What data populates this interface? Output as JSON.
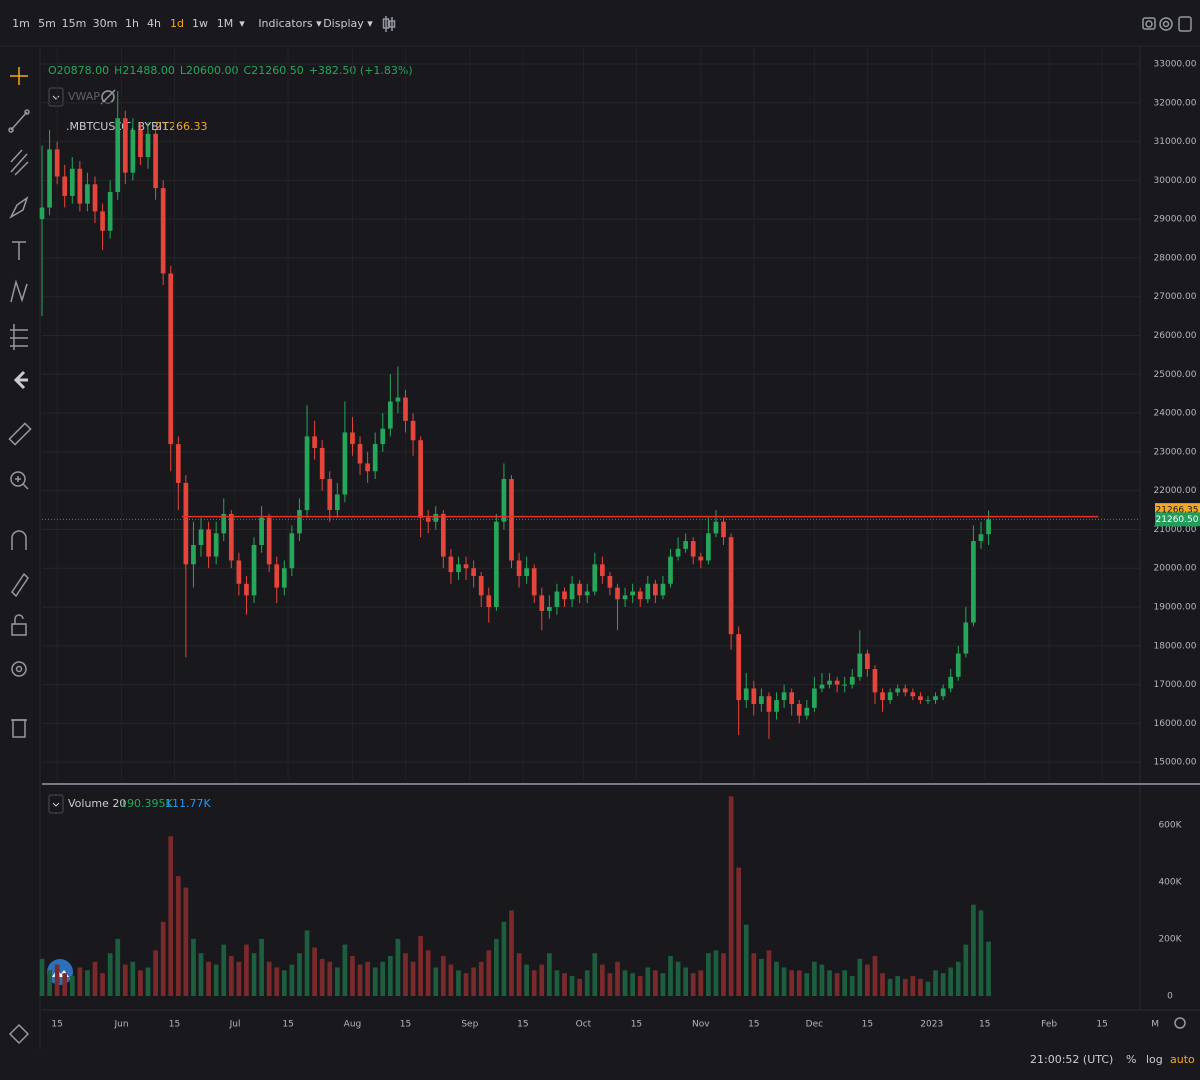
{
  "toolbar": {
    "timeframes": [
      "1m",
      "5m",
      "15m",
      "30m",
      "1h",
      "4h",
      "1d",
      "1w",
      "1M"
    ],
    "more": "▾",
    "indicators": "Indicators ▾",
    "display": "Display ▾"
  },
  "legend": {
    "ohlc": [
      "O20878.00",
      "H21488.00",
      "L20600.00",
      "C21260.50",
      "+382.50 (+1.83%)"
    ],
    "indicator": "VWAP",
    "symbol": ".MBTCUSDT, BYBIT",
    "symbol_value": "21266.33",
    "volume_name": "Volume 20",
    "volume_value": "190.395K",
    "volume_ma": "111.77K"
  },
  "status_bar": {
    "time": "21:00:52 (UTC)",
    "percent": "%",
    "log": "log",
    "auto": "auto"
  },
  "chart_data": {
    "type": "candlestick",
    "up_color": "#26a65b",
    "down_color": "#e5453b",
    "up_volume_color": "#1d5e3e",
    "down_volume_color": "#7a2a2b",
    "xlim": [
      10,
      300
    ],
    "xticks": [
      {
        "value": 14,
        "label": "15"
      },
      {
        "value": 31,
        "label": "Jun"
      },
      {
        "value": 45,
        "label": "15"
      },
      {
        "value": 61,
        "label": "Jul"
      },
      {
        "value": 75,
        "label": "15"
      },
      {
        "value": 92,
        "label": "Aug"
      },
      {
        "value": 106,
        "label": "15"
      },
      {
        "value": 123,
        "label": "Sep"
      },
      {
        "value": 137,
        "label": "15"
      },
      {
        "value": 153,
        "label": "Oct"
      },
      {
        "value": 167,
        "label": "15"
      },
      {
        "value": 184,
        "label": "Nov"
      },
      {
        "value": 198,
        "label": "15"
      },
      {
        "value": 214,
        "label": "Dec"
      },
      {
        "value": 228,
        "label": "15"
      },
      {
        "value": 245,
        "label": "2023"
      },
      {
        "value": 259,
        "label": "15"
      },
      {
        "value": 276,
        "label": "Feb"
      },
      {
        "value": 290,
        "label": "15"
      },
      {
        "value": 304,
        "label": "M"
      }
    ],
    "ylim": [
      14540,
      33490
    ],
    "yticks": [
      {
        "value": 15000,
        "label": "15000.00"
      },
      {
        "value": 16000,
        "label": "16000.00"
      },
      {
        "value": 17000,
        "label": "17000.00"
      },
      {
        "value": 18000,
        "label": "18000.00"
      },
      {
        "value": 19000,
        "label": "19000.00"
      },
      {
        "value": 20000,
        "label": "20000.00"
      },
      {
        "value": 21000,
        "label": "21000.00"
      },
      {
        "value": 22000,
        "label": "22000.00"
      },
      {
        "value": 23000,
        "label": "23000.00"
      },
      {
        "value": 24000,
        "label": "24000.00"
      },
      {
        "value": 25000,
        "label": "25000.00"
      },
      {
        "value": 26000,
        "label": "26000.00"
      },
      {
        "value": 27000,
        "label": "27000.00"
      },
      {
        "value": 28000,
        "label": "28000.00"
      },
      {
        "value": 29000,
        "label": "29000.00"
      },
      {
        "value": 30000,
        "label": "30000.00"
      },
      {
        "value": 31000,
        "label": "31000.00"
      },
      {
        "value": 32000,
        "label": "32000.00"
      },
      {
        "value": 33000,
        "label": "33000.00"
      }
    ],
    "vol_ylim": [
      0,
      722000
    ],
    "vol_yticks": [
      0,
      {
        "value": 200000,
        "label": "200K"
      },
      {
        "value": 400000,
        "label": "400K"
      },
      {
        "value": 600000,
        "label": "600K"
      }
    ],
    "price_labels": [
      {
        "value": 21266.35,
        "label": "21266.35",
        "color": "#f5a623"
      },
      {
        "value": 21260.5,
        "label": "21260.50",
        "color": "#1f9f5a"
      }
    ],
    "horizontal_ray": {
      "value": 21330,
      "x": [
        47,
        289
      ],
      "color": "#e5322d"
    },
    "x": [
      10,
      12,
      14,
      16,
      18,
      20,
      22,
      24,
      26,
      28,
      30,
      32,
      34,
      36,
      38,
      40,
      42,
      44,
      46,
      48,
      50,
      52,
      54,
      56,
      58,
      60,
      62,
      64,
      66,
      68,
      70,
      72,
      74,
      76,
      78,
      80,
      82,
      84,
      86,
      88,
      90,
      92,
      94,
      96,
      98,
      100,
      102,
      104,
      106,
      108,
      110,
      112,
      114,
      116,
      118,
      120,
      122,
      124,
      126,
      128,
      130,
      132,
      134,
      136,
      138,
      140,
      142,
      144,
      146,
      148,
      150,
      152,
      154,
      156,
      158,
      160,
      162,
      164,
      166,
      168,
      170,
      172,
      174,
      176,
      178,
      180,
      182,
      184,
      186,
      188,
      190,
      192,
      194,
      196,
      198,
      200,
      202,
      204,
      206,
      208,
      210,
      212,
      214,
      216,
      218,
      220,
      222,
      224,
      226,
      228,
      230,
      232,
      234,
      236,
      238,
      240,
      242,
      244,
      246,
      248,
      250,
      252,
      254,
      256,
      258,
      260
    ],
    "ohlc": [
      [
        29000,
        30900,
        26500,
        29300
      ],
      [
        29300,
        31300,
        29100,
        30800
      ],
      [
        30800,
        31000,
        29900,
        30100
      ],
      [
        30100,
        30400,
        29300,
        29600
      ],
      [
        29600,
        30600,
        29400,
        30300
      ],
      [
        30300,
        30500,
        29200,
        29400
      ],
      [
        29400,
        30200,
        29200,
        29900
      ],
      [
        29900,
        30100,
        28900,
        29200
      ],
      [
        29200,
        29400,
        28200,
        28700
      ],
      [
        28700,
        30000,
        28500,
        29700
      ],
      [
        29700,
        32300,
        29500,
        31600
      ],
      [
        31600,
        31800,
        29900,
        30200
      ],
      [
        30200,
        31600,
        30000,
        31300
      ],
      [
        31300,
        31500,
        30400,
        30600
      ],
      [
        30600,
        31500,
        30300,
        31200
      ],
      [
        31200,
        31300,
        29500,
        29800
      ],
      [
        29800,
        30000,
        27300,
        27600
      ],
      [
        27600,
        27800,
        22500,
        23200
      ],
      [
        23200,
        23400,
        21500,
        22200
      ],
      [
        22200,
        22400,
        17700,
        20100
      ],
      [
        20100,
        21200,
        19500,
        20600
      ],
      [
        20600,
        21300,
        20300,
        21000
      ],
      [
        21000,
        21200,
        20000,
        20300
      ],
      [
        20300,
        21200,
        20100,
        20900
      ],
      [
        20900,
        21800,
        20700,
        21400
      ],
      [
        21400,
        21500,
        20000,
        20200
      ],
      [
        20200,
        20400,
        19300,
        19600
      ],
      [
        19600,
        19800,
        18800,
        19300
      ],
      [
        19300,
        20800,
        19100,
        20600
      ],
      [
        20600,
        21600,
        20400,
        21300
      ],
      [
        21300,
        21400,
        19900,
        20100
      ],
      [
        20100,
        20300,
        19100,
        19500
      ],
      [
        19500,
        20200,
        19300,
        20000
      ],
      [
        20000,
        21100,
        19800,
        20900
      ],
      [
        20900,
        21800,
        20700,
        21500
      ],
      [
        21500,
        24200,
        21300,
        23400
      ],
      [
        23400,
        23800,
        22800,
        23100
      ],
      [
        23100,
        23300,
        22000,
        22300
      ],
      [
        22300,
        22500,
        21200,
        21500
      ],
      [
        21500,
        22200,
        21300,
        21900
      ],
      [
        21900,
        24300,
        21700,
        23500
      ],
      [
        23500,
        23900,
        22900,
        23200
      ],
      [
        23200,
        23400,
        22400,
        22700
      ],
      [
        22700,
        23000,
        22200,
        22500
      ],
      [
        22500,
        23500,
        22300,
        23200
      ],
      [
        23200,
        24000,
        23000,
        23600
      ],
      [
        23600,
        25000,
        23400,
        24300
      ],
      [
        24300,
        25200,
        24000,
        24400
      ],
      [
        24400,
        24600,
        23500,
        23800
      ],
      [
        23800,
        24000,
        22900,
        23300
      ],
      [
        23300,
        23400,
        20800,
        21300
      ],
      [
        21300,
        21500,
        20900,
        21200
      ],
      [
        21200,
        21600,
        21000,
        21400
      ],
      [
        21400,
        21500,
        20000,
        20300
      ],
      [
        20300,
        20500,
        19600,
        19900
      ],
      [
        19900,
        20300,
        19700,
        20100
      ],
      [
        20100,
        20300,
        19700,
        20000
      ],
      [
        20000,
        20200,
        19500,
        19800
      ],
      [
        19800,
        19900,
        19000,
        19300
      ],
      [
        19300,
        19500,
        18600,
        19000
      ],
      [
        19000,
        21400,
        18900,
        21200
      ],
      [
        21200,
        22700,
        21000,
        22300
      ],
      [
        22300,
        22400,
        20000,
        20200
      ],
      [
        20200,
        20400,
        19500,
        19800
      ],
      [
        19800,
        20300,
        19600,
        20000
      ],
      [
        20000,
        20100,
        19100,
        19300
      ],
      [
        19300,
        19500,
        18400,
        18900
      ],
      [
        18900,
        19300,
        18700,
        19000
      ],
      [
        19000,
        19600,
        18800,
        19400
      ],
      [
        19400,
        19500,
        19000,
        19200
      ],
      [
        19200,
        19800,
        19000,
        19600
      ],
      [
        19600,
        19700,
        19100,
        19300
      ],
      [
        19300,
        19600,
        19100,
        19400
      ],
      [
        19400,
        20400,
        19300,
        20100
      ],
      [
        20100,
        20300,
        19600,
        19800
      ],
      [
        19800,
        19900,
        19300,
        19500
      ],
      [
        19500,
        19600,
        18400,
        19200
      ],
      [
        19200,
        19500,
        19000,
        19300
      ],
      [
        19300,
        19600,
        19100,
        19400
      ],
      [
        19400,
        19500,
        19000,
        19200
      ],
      [
        19200,
        19800,
        19100,
        19600
      ],
      [
        19600,
        19700,
        19100,
        19300
      ],
      [
        19300,
        19800,
        19200,
        19600
      ],
      [
        19600,
        20500,
        19500,
        20300
      ],
      [
        20300,
        20800,
        20200,
        20500
      ],
      [
        20500,
        20900,
        20400,
        20700
      ],
      [
        20700,
        20800,
        20100,
        20300
      ],
      [
        20300,
        20400,
        20000,
        20200
      ],
      [
        20200,
        21300,
        20100,
        20900
      ],
      [
        20900,
        21500,
        20800,
        21200
      ],
      [
        21200,
        21300,
        20600,
        20800
      ],
      [
        20800,
        20900,
        17900,
        18300
      ],
      [
        18300,
        18500,
        15700,
        16600
      ],
      [
        16600,
        17300,
        16400,
        16900
      ],
      [
        16900,
        17100,
        16200,
        16500
      ],
      [
        16500,
        16900,
        16300,
        16700
      ],
      [
        16700,
        16800,
        15600,
        16300
      ],
      [
        16300,
        16800,
        16100,
        16600
      ],
      [
        16600,
        17000,
        16400,
        16800
      ],
      [
        16800,
        16900,
        16200,
        16500
      ],
      [
        16500,
        16600,
        16000,
        16200
      ],
      [
        16200,
        16600,
        16100,
        16400
      ],
      [
        16400,
        17200,
        16300,
        16900
      ],
      [
        16900,
        17300,
        16800,
        17000
      ],
      [
        17000,
        17300,
        16900,
        17100
      ],
      [
        17100,
        17200,
        16800,
        17000
      ],
      [
        17000,
        17200,
        16800,
        17000
      ],
      [
        17000,
        17400,
        16900,
        17200
      ],
      [
        17200,
        18400,
        17100,
        17800
      ],
      [
        17800,
        17900,
        17200,
        17400
      ],
      [
        17400,
        17500,
        16500,
        16800
      ],
      [
        16800,
        16900,
        16300,
        16600
      ],
      [
        16600,
        16900,
        16500,
        16800
      ],
      [
        16800,
        17000,
        16700,
        16900
      ],
      [
        16900,
        17000,
        16700,
        16800
      ],
      [
        16800,
        16900,
        16600,
        16700
      ],
      [
        16700,
        16800,
        16500,
        16600
      ],
      [
        16600,
        16700,
        16500,
        16600
      ],
      [
        16600,
        16800,
        16500,
        16700
      ],
      [
        16700,
        17000,
        16600,
        16900
      ],
      [
        16900,
        17400,
        16800,
        17200
      ],
      [
        17200,
        18000,
        17100,
        17800
      ],
      [
        17800,
        19000,
        17700,
        18600
      ],
      [
        18600,
        21100,
        18500,
        20700
      ],
      [
        20700,
        21200,
        20500,
        20878
      ],
      [
        20878,
        21488,
        20600,
        21260.5
      ]
    ],
    "volume": [
      130000,
      90000,
      110000,
      80000,
      70000,
      100000,
      90000,
      120000,
      80000,
      150000,
      200000,
      110000,
      120000,
      90000,
      100000,
      160000,
      260000,
      560000,
      420000,
      380000,
      200000,
      150000,
      120000,
      110000,
      180000,
      140000,
      120000,
      180000,
      150000,
      200000,
      120000,
      100000,
      90000,
      110000,
      150000,
      230000,
      170000,
      130000,
      120000,
      100000,
      180000,
      140000,
      110000,
      120000,
      100000,
      120000,
      140000,
      200000,
      150000,
      120000,
      210000,
      160000,
      100000,
      140000,
      110000,
      90000,
      80000,
      100000,
      120000,
      160000,
      200000,
      260000,
      300000,
      150000,
      110000,
      90000,
      110000,
      150000,
      90000,
      80000,
      70000,
      60000,
      90000,
      150000,
      110000,
      80000,
      120000,
      90000,
      80000,
      70000,
      100000,
      90000,
      80000,
      140000,
      120000,
      100000,
      80000,
      90000,
      150000,
      160000,
      150000,
      700000,
      450000,
      250000,
      150000,
      130000,
      160000,
      120000,
      100000,
      90000,
      90000,
      80000,
      120000,
      110000,
      90000,
      80000,
      90000,
      70000,
      130000,
      110000,
      140000,
      80000,
      60000,
      70000,
      60000,
      70000,
      60000,
      50000,
      90000,
      80000,
      100000,
      120000,
      180000,
      320000,
      300000,
      190395
    ]
  }
}
